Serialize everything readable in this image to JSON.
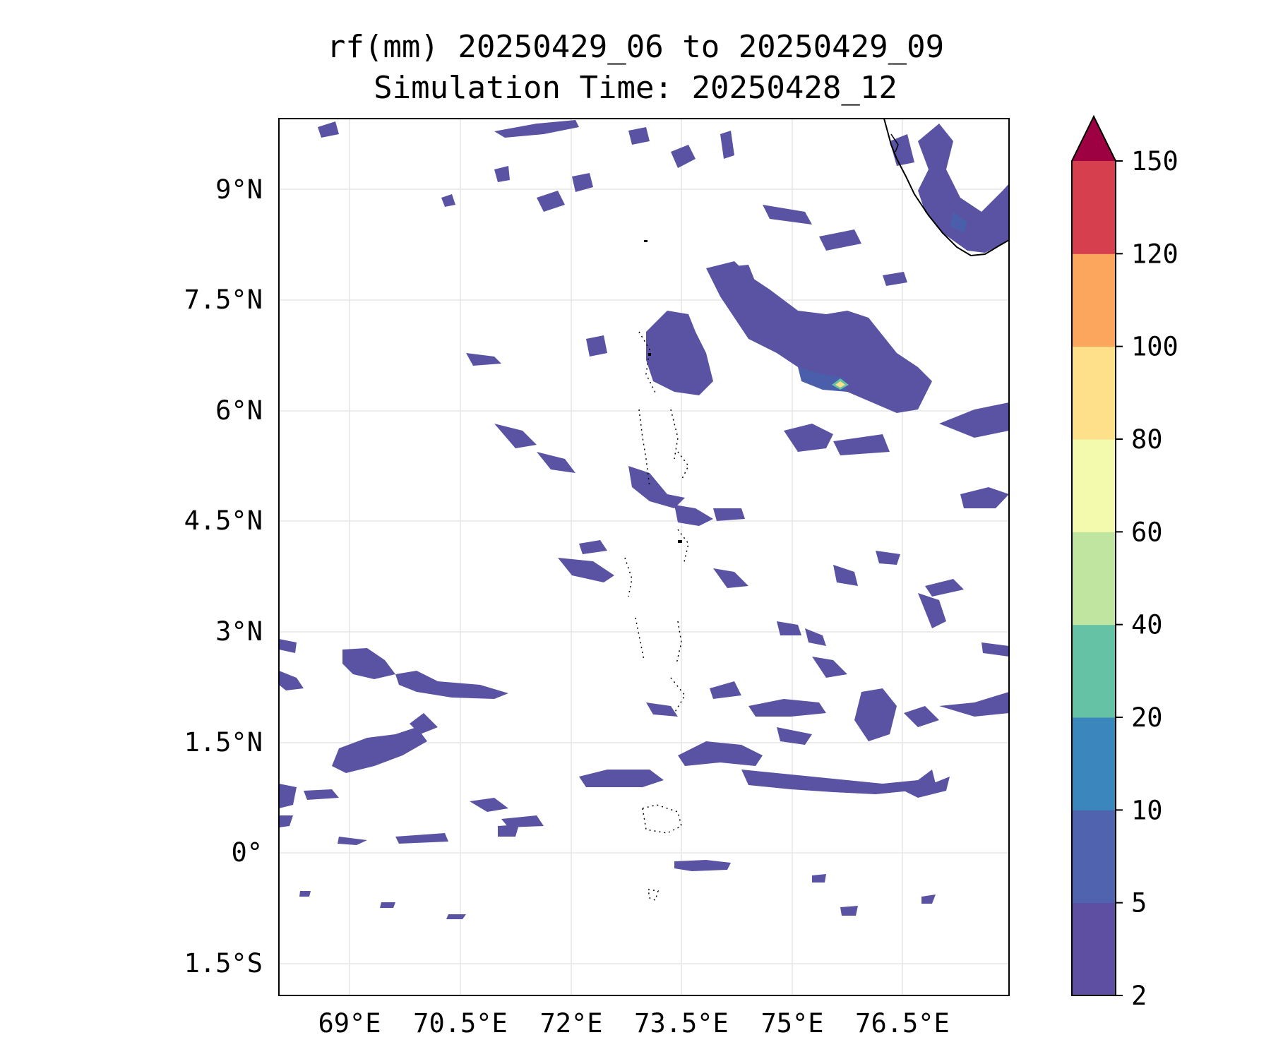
{
  "title": {
    "line1": "rf(mm) 20250429_06 to 20250429_09",
    "line2": "Simulation Time: 20250428_12"
  },
  "map": {
    "lat_ticks": [
      "9°N",
      "7.5°N",
      "6°N",
      "4.5°N",
      "3°N",
      "1.5°N",
      "0°",
      "1.5°S"
    ],
    "lon_ticks": [
      "69°E",
      "70.5°E",
      "72°E",
      "73.5°E",
      "75°E",
      "76.5°E"
    ]
  },
  "colorbar": {
    "levels": [
      "2",
      "5",
      "10",
      "20",
      "40",
      "60",
      "80",
      "100",
      "120",
      "150"
    ],
    "colors": [
      "#5e4fa2",
      "#4f63ae",
      "#3b86bc",
      "#66c2a5",
      "#bfe5a0",
      "#f3faad",
      "#fee08b",
      "#fca55d",
      "#d6404e",
      "#9e0142"
    ],
    "extend": "max"
  },
  "colors": {
    "light_rain": "#5a53a3",
    "medium_rain": "#4a5eab",
    "peak_core": "#fee08b",
    "coastline": "#000000",
    "grid": "#e6e6e6"
  }
}
